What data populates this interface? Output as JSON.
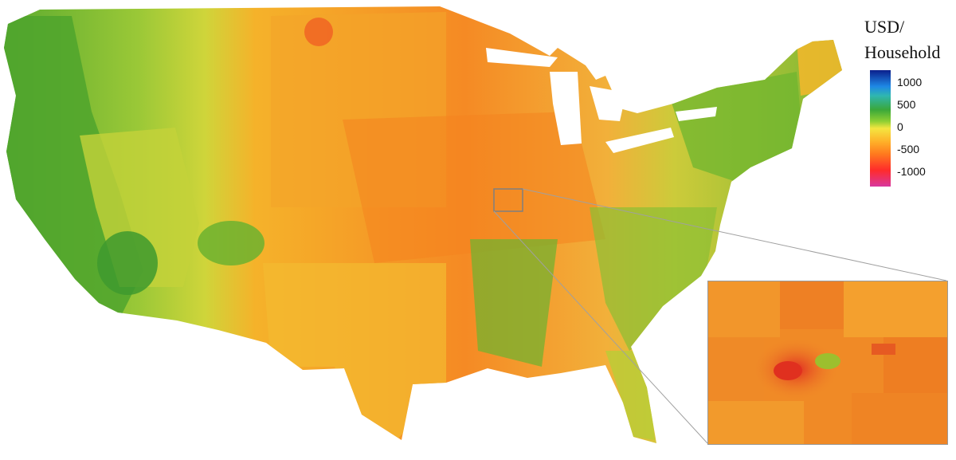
{
  "legend": {
    "title_line1": "USD/",
    "title_line2": "Household",
    "ticks": [
      "1000",
      "500",
      "0",
      "-500",
      "-1000"
    ],
    "scale_colors": [
      "#0b1f8c",
      "#1e88e5",
      "#3aa83a",
      "#f4e640",
      "#ff7a1e",
      "#ff2b2b",
      "#d8379e"
    ]
  },
  "map": {
    "subject": "United States county-level values",
    "colors": {
      "west_green": "#5daf2e",
      "mountain_yellow": "#cfd63a",
      "plains_orange": "#f49a2a",
      "midwest_orange": "#f58a24",
      "southeast_mixed": "#d9c937",
      "coastal_green": "#58a832"
    }
  },
  "inset": {
    "colors": {
      "base": "#f08a26",
      "hotspot": "#e83a2a",
      "center": "#9cbf2e"
    }
  }
}
